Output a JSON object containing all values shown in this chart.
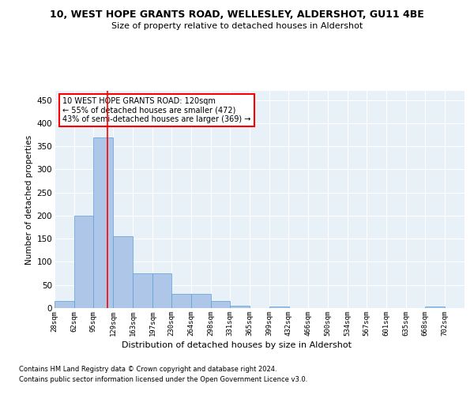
{
  "title": "10, WEST HOPE GRANTS ROAD, WELLESLEY, ALDERSHOT, GU11 4BE",
  "subtitle": "Size of property relative to detached houses in Aldershot",
  "xlabel": "Distribution of detached houses by size in Aldershot",
  "ylabel": "Number of detached properties",
  "bar_color": "#aec6e8",
  "bar_edge_color": "#5a9fd4",
  "background_color": "#e8f0f8",
  "grid_color": "white",
  "annotation_box_text": "10 WEST HOPE GRANTS ROAD: 120sqm\n← 55% of detached houses are smaller (472)\n43% of semi-detached houses are larger (369) →",
  "annotation_box_color": "white",
  "annotation_box_edge_color": "red",
  "vline_x": 120,
  "vline_color": "red",
  "footer_line1": "Contains HM Land Registry data © Crown copyright and database right 2024.",
  "footer_line2": "Contains public sector information licensed under the Open Government Licence v3.0.",
  "bins": [
    28,
    62,
    95,
    129,
    163,
    197,
    230,
    264,
    298,
    331,
    365,
    399,
    432,
    466,
    500,
    534,
    567,
    601,
    635,
    668,
    702
  ],
  "counts": [
    15,
    200,
    370,
    155,
    75,
    75,
    30,
    30,
    15,
    5,
    0,
    3,
    0,
    0,
    0,
    0,
    0,
    0,
    0,
    3,
    0
  ],
  "ylim": [
    0,
    470
  ],
  "yticks": [
    0,
    50,
    100,
    150,
    200,
    250,
    300,
    350,
    400,
    450
  ]
}
